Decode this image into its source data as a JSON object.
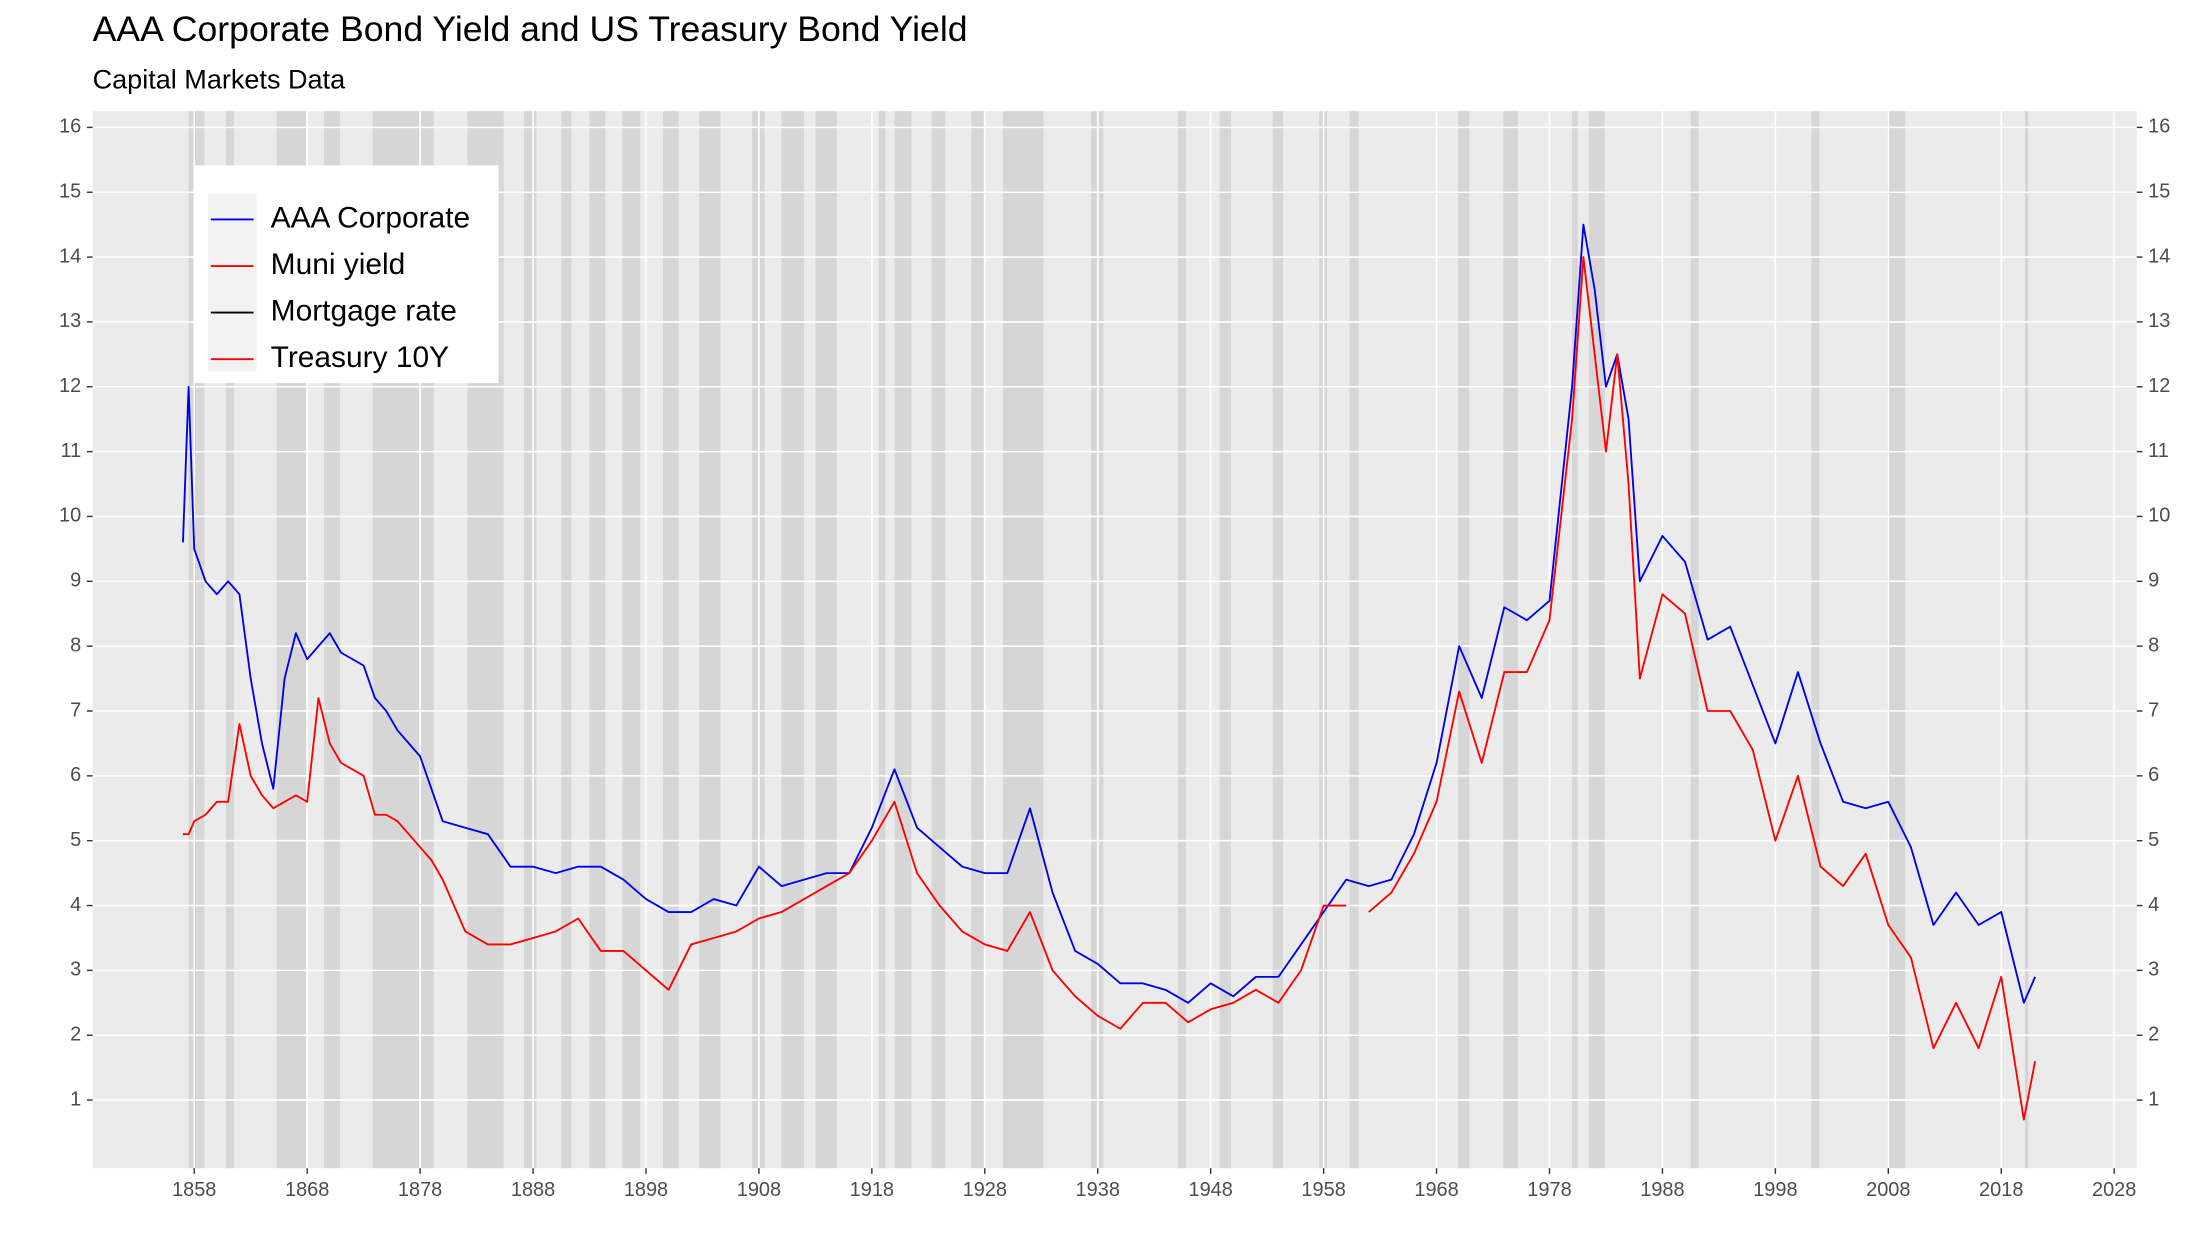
{
  "chart_data": {
    "type": "line",
    "title": "AAA Corporate Bond Yield and US Treasury Bond Yield",
    "subtitle": "Capital Markets Data",
    "xlim": [
      1849,
      2030
    ],
    "xticks": [
      1858,
      1868,
      1878,
      1888,
      1898,
      1908,
      1918,
      1928,
      1938,
      1948,
      1958,
      1968,
      1978,
      1988,
      1998,
      2008,
      2018,
      2028
    ],
    "ylim": [
      -0.05,
      16.25
    ],
    "yticks": [
      1,
      2,
      3,
      4,
      5,
      6,
      7,
      8,
      9,
      10,
      11,
      12,
      13,
      14,
      15,
      16
    ],
    "y2lim": [
      -0.05,
      16.25
    ],
    "y2ticks": [
      1,
      2,
      3,
      4,
      5,
      6,
      7,
      8,
      9,
      10,
      11,
      12,
      13,
      14,
      15,
      16
    ],
    "grid": true,
    "legend": "top-left",
    "shaded_periods": [
      [
        1857.5,
        1858.9
      ],
      [
        1860.8,
        1861.5
      ],
      [
        1865.3,
        1867.9
      ],
      [
        1869.5,
        1870.9
      ],
      [
        1873.8,
        1879.2
      ],
      [
        1882.2,
        1885.4
      ],
      [
        1887.2,
        1888.3
      ],
      [
        1890.5,
        1891.4
      ],
      [
        1893,
        1894.4
      ],
      [
        1895.9,
        1897.5
      ],
      [
        1899.5,
        1900.9
      ],
      [
        1902.7,
        1904.6
      ],
      [
        1907.4,
        1908.5
      ],
      [
        1910,
        1912
      ],
      [
        1913,
        1914.9
      ],
      [
        1918.6,
        1919.2
      ],
      [
        1920,
        1921.5
      ],
      [
        1923.3,
        1924.5
      ],
      [
        1926.8,
        1927.9
      ],
      [
        1929.6,
        1933.2
      ],
      [
        1937.4,
        1938.5
      ],
      [
        1945.1,
        1945.8
      ],
      [
        1948.8,
        1949.8
      ],
      [
        1953.5,
        1954.4
      ],
      [
        1957.6,
        1958.3
      ],
      [
        1960.3,
        1961.1
      ],
      [
        1969.9,
        1970.9
      ],
      [
        1973.9,
        1975.2
      ],
      [
        1980,
        1980.5
      ],
      [
        1981.5,
        1982.9
      ],
      [
        1990.5,
        1991.2
      ],
      [
        2001.2,
        2001.9
      ],
      [
        2007.9,
        2009.5
      ],
      [
        2020.1,
        2020.4
      ]
    ],
    "x": [
      1857,
      1857.5,
      1858,
      1859,
      1860,
      1861,
      1862,
      1863,
      1864,
      1865,
      1866,
      1867,
      1868,
      1869,
      1870,
      1871,
      1872,
      1873,
      1874,
      1875,
      1876,
      1877,
      1878,
      1879,
      1880,
      1882,
      1884,
      1886,
      1888,
      1890,
      1892,
      1894,
      1896,
      1898,
      1900,
      1902,
      1904,
      1906,
      1908,
      1910,
      1912,
      1914,
      1916,
      1918,
      1920,
      1922,
      1924,
      1926,
      1928,
      1930,
      1932,
      1934,
      1936,
      1938,
      1940,
      1942,
      1944,
      1946,
      1948,
      1950,
      1952,
      1954,
      1956,
      1958,
      1960,
      1962,
      1964,
      1966,
      1968,
      1970,
      1972,
      1974,
      1976,
      1978,
      1980,
      1981,
      1982,
      1983,
      1984,
      1985,
      1986,
      1988,
      1990,
      1992,
      1994,
      1996,
      1998,
      2000,
      2002,
      2004,
      2006,
      2008,
      2010,
      2012,
      2014,
      2016,
      2018,
      2020,
      2021
    ],
    "series": [
      {
        "name": "AAA Corporate",
        "color": "#0000ee",
        "values": [
          9.6,
          12.0,
          9.5,
          9.0,
          8.8,
          9.0,
          8.8,
          7.5,
          6.5,
          5.8,
          7.5,
          8.2,
          7.8,
          8.0,
          8.2,
          7.9,
          7.8,
          7.7,
          7.2,
          7.0,
          6.7,
          6.5,
          6.3,
          5.8,
          5.3,
          5.2,
          5.1,
          4.6,
          4.6,
          4.5,
          4.6,
          4.6,
          4.4,
          4.1,
          3.9,
          3.9,
          4.1,
          4.0,
          4.6,
          4.3,
          4.4,
          4.5,
          4.5,
          5.2,
          6.1,
          5.2,
          4.9,
          4.6,
          4.5,
          4.5,
          5.5,
          4.2,
          3.3,
          3.1,
          2.8,
          2.8,
          2.7,
          2.5,
          2.8,
          2.6,
          2.9,
          2.9,
          3.4,
          3.9,
          4.4,
          4.3,
          4.4,
          5.1,
          6.2,
          8.0,
          7.2,
          8.6,
          8.4,
          8.7,
          12.0,
          14.5,
          13.5,
          12.0,
          12.5,
          11.5,
          9.0,
          9.7,
          9.3,
          8.1,
          8.3,
          7.4,
          6.5,
          7.6,
          6.5,
          5.6,
          5.5,
          5.6,
          4.9,
          3.7,
          4.2,
          3.7,
          3.9,
          2.5,
          2.9
        ]
      },
      {
        "name": "Muni yield",
        "color": "#ff0000",
        "values": [
          5.1,
          5.1,
          5.3,
          5.4,
          5.6,
          5.6,
          6.8,
          6.0,
          5.7,
          5.5,
          5.6,
          5.7,
          5.6,
          7.2,
          6.5,
          6.2,
          6.1,
          6.0,
          5.4,
          5.4,
          5.3,
          5.1,
          4.9,
          4.7,
          4.4,
          3.6,
          3.4,
          3.4,
          3.5,
          3.6,
          3.8,
          3.3,
          3.3,
          3.0,
          2.7,
          3.4,
          3.5,
          3.6,
          3.8,
          3.9,
          4.1,
          4.3,
          4.5,
          5.0,
          5.6,
          4.5,
          4.0,
          3.6,
          3.4,
          3.3,
          3.9,
          3.0,
          2.6,
          2.3,
          2.1,
          2.5,
          2.5,
          2.2,
          2.4,
          2.5,
          2.7,
          2.5,
          3.0,
          4.0,
          4.0,
          null,
          null,
          null,
          null,
          null,
          null,
          null,
          null,
          null,
          null,
          null,
          null,
          null,
          null,
          null,
          null,
          null,
          null,
          null,
          null,
          null,
          null,
          null,
          null,
          null,
          null,
          null,
          null,
          null,
          null,
          null,
          null,
          null,
          null
        ]
      },
      {
        "name": "Mortgage rate",
        "color": "#000000",
        "values": [
          null,
          null,
          null,
          null,
          null,
          null,
          null,
          null,
          null,
          null,
          null,
          null,
          null,
          null,
          null,
          null,
          null,
          null,
          null,
          null,
          null,
          null,
          null,
          null,
          null,
          null,
          null,
          null,
          null,
          null,
          null,
          null,
          null,
          null,
          null,
          null,
          null,
          null,
          null,
          null,
          null,
          null,
          null,
          null,
          null,
          null,
          null,
          null,
          null,
          null,
          null,
          null,
          null,
          null,
          null,
          null,
          null,
          null,
          null,
          null,
          null,
          null,
          null,
          null,
          null,
          null,
          null,
          null,
          null,
          null,
          null,
          null,
          null,
          null,
          null,
          null,
          null,
          null,
          null,
          null,
          null,
          null,
          null,
          null,
          null,
          null,
          null,
          null,
          null,
          null,
          null,
          null,
          null,
          null,
          null,
          null,
          null,
          null,
          null
        ]
      },
      {
        "name": "Treasury 10Y",
        "color": "#ff0000",
        "values": [
          null,
          null,
          null,
          null,
          null,
          null,
          null,
          null,
          null,
          null,
          null,
          null,
          null,
          null,
          null,
          null,
          null,
          null,
          null,
          null,
          null,
          null,
          null,
          null,
          null,
          null,
          null,
          null,
          null,
          null,
          null,
          null,
          null,
          null,
          null,
          null,
          null,
          null,
          null,
          null,
          null,
          null,
          null,
          null,
          null,
          null,
          null,
          null,
          null,
          null,
          null,
          null,
          null,
          null,
          null,
          null,
          null,
          null,
          null,
          null,
          null,
          null,
          null,
          null,
          null,
          3.9,
          4.2,
          4.8,
          5.6,
          7.3,
          6.2,
          7.6,
          7.6,
          8.4,
          11.5,
          14.0,
          12.5,
          11.0,
          12.5,
          10.5,
          7.5,
          8.8,
          8.5,
          7.0,
          7.0,
          6.4,
          5.0,
          6.0,
          4.6,
          4.3,
          4.8,
          3.7,
          3.2,
          1.8,
          2.5,
          1.8,
          2.9,
          0.7,
          1.6
        ]
      }
    ]
  }
}
